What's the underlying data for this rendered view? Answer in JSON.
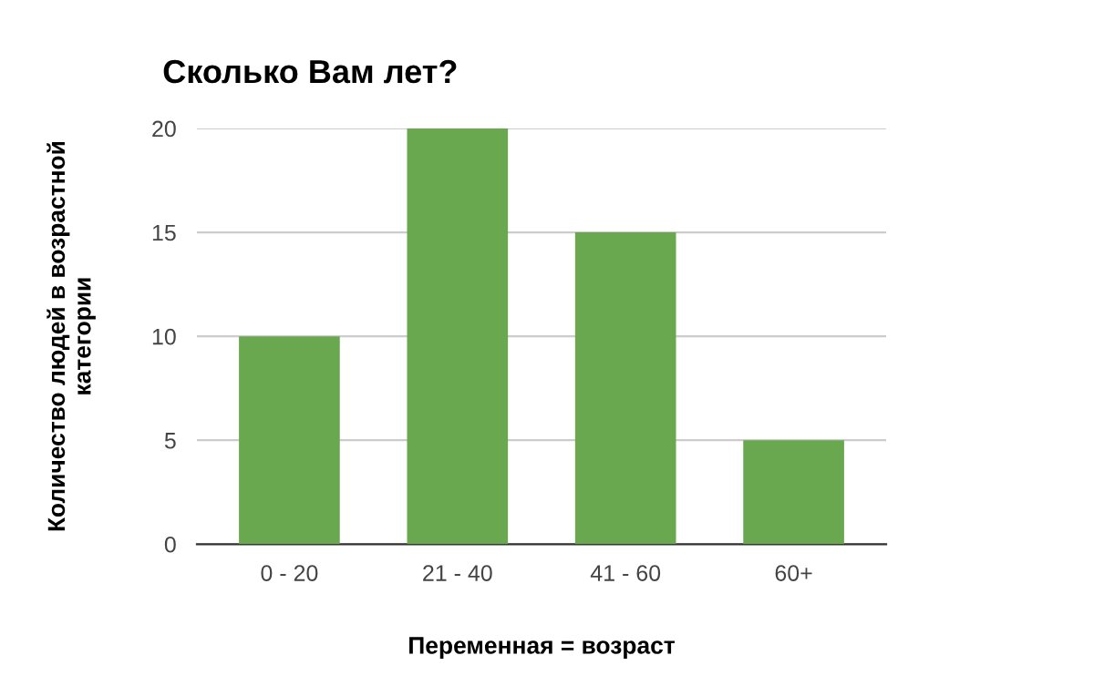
{
  "chart_data": {
    "type": "bar",
    "title": "Сколько Вам лет?",
    "xlabel": "Переменная = возраст",
    "ylabel": "Количество людей в возрастной\nкатегории",
    "categories": [
      "0 - 20",
      "21 - 40",
      "41 - 60",
      "60+"
    ],
    "values": [
      10,
      20,
      15,
      5
    ],
    "color": "#6aa84f",
    "ylim": [
      0,
      20
    ],
    "yticks": [
      0,
      5,
      10,
      15,
      20
    ],
    "grid": "y"
  }
}
